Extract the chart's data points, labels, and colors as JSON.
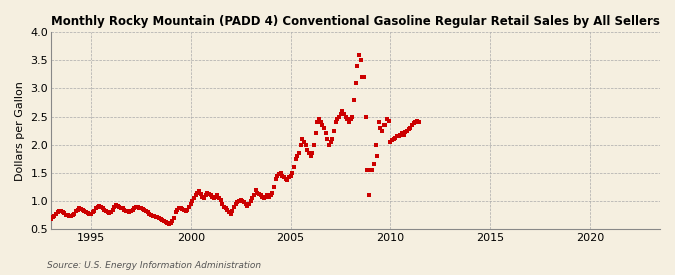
{
  "title": "Monthly Rocky Mountain (PADD 4) Conventional Gasoline Regular Retail Sales by All Sellers",
  "ylabel": "Dollars per Gallon",
  "source": "Source: U.S. Energy Information Administration",
  "background_color": "#f5efe0",
  "dot_color": "#cc0000",
  "xlim": [
    1993.0,
    2023.5
  ],
  "ylim": [
    0.5,
    4.0
  ],
  "yticks": [
    0.5,
    1.0,
    1.5,
    2.0,
    2.5,
    3.0,
    3.5,
    4.0
  ],
  "xticks": [
    1995,
    2000,
    2005,
    2010,
    2015,
    2020
  ],
  "data": [
    [
      1993.0,
      0.68
    ],
    [
      1993.08,
      0.72
    ],
    [
      1993.17,
      0.74
    ],
    [
      1993.25,
      0.78
    ],
    [
      1993.33,
      0.8
    ],
    [
      1993.42,
      0.83
    ],
    [
      1993.5,
      0.82
    ],
    [
      1993.58,
      0.81
    ],
    [
      1993.67,
      0.79
    ],
    [
      1993.75,
      0.76
    ],
    [
      1993.83,
      0.75
    ],
    [
      1993.92,
      0.74
    ],
    [
      1994.0,
      0.73
    ],
    [
      1994.08,
      0.75
    ],
    [
      1994.17,
      0.78
    ],
    [
      1994.25,
      0.82
    ],
    [
      1994.33,
      0.85
    ],
    [
      1994.42,
      0.87
    ],
    [
      1994.5,
      0.86
    ],
    [
      1994.58,
      0.84
    ],
    [
      1994.67,
      0.82
    ],
    [
      1994.75,
      0.8
    ],
    [
      1994.83,
      0.79
    ],
    [
      1994.92,
      0.78
    ],
    [
      1995.0,
      0.77
    ],
    [
      1995.08,
      0.8
    ],
    [
      1995.17,
      0.83
    ],
    [
      1995.25,
      0.88
    ],
    [
      1995.33,
      0.9
    ],
    [
      1995.42,
      0.91
    ],
    [
      1995.5,
      0.89
    ],
    [
      1995.58,
      0.87
    ],
    [
      1995.67,
      0.85
    ],
    [
      1995.75,
      0.83
    ],
    [
      1995.83,
      0.81
    ],
    [
      1995.92,
      0.79
    ],
    [
      1996.0,
      0.8
    ],
    [
      1996.08,
      0.84
    ],
    [
      1996.17,
      0.9
    ],
    [
      1996.25,
      0.93
    ],
    [
      1996.33,
      0.91
    ],
    [
      1996.42,
      0.9
    ],
    [
      1996.5,
      0.88
    ],
    [
      1996.58,
      0.87
    ],
    [
      1996.67,
      0.85
    ],
    [
      1996.75,
      0.83
    ],
    [
      1996.83,
      0.82
    ],
    [
      1996.92,
      0.81
    ],
    [
      1997.0,
      0.82
    ],
    [
      1997.08,
      0.85
    ],
    [
      1997.17,
      0.88
    ],
    [
      1997.25,
      0.9
    ],
    [
      1997.33,
      0.89
    ],
    [
      1997.42,
      0.88
    ],
    [
      1997.5,
      0.87
    ],
    [
      1997.58,
      0.86
    ],
    [
      1997.67,
      0.84
    ],
    [
      1997.75,
      0.82
    ],
    [
      1997.83,
      0.8
    ],
    [
      1997.92,
      0.78
    ],
    [
      1998.0,
      0.75
    ],
    [
      1998.08,
      0.74
    ],
    [
      1998.17,
      0.73
    ],
    [
      1998.25,
      0.72
    ],
    [
      1998.33,
      0.71
    ],
    [
      1998.42,
      0.7
    ],
    [
      1998.5,
      0.69
    ],
    [
      1998.58,
      0.67
    ],
    [
      1998.67,
      0.65
    ],
    [
      1998.75,
      0.63
    ],
    [
      1998.83,
      0.62
    ],
    [
      1998.92,
      0.6
    ],
    [
      1999.0,
      0.62
    ],
    [
      1999.08,
      0.65
    ],
    [
      1999.17,
      0.7
    ],
    [
      1999.25,
      0.8
    ],
    [
      1999.33,
      0.85
    ],
    [
      1999.42,
      0.88
    ],
    [
      1999.5,
      0.87
    ],
    [
      1999.58,
      0.86
    ],
    [
      1999.67,
      0.84
    ],
    [
      1999.75,
      0.82
    ],
    [
      1999.83,
      0.85
    ],
    [
      1999.92,
      0.9
    ],
    [
      2000.0,
      0.95
    ],
    [
      2000.08,
      1.0
    ],
    [
      2000.17,
      1.05
    ],
    [
      2000.25,
      1.1
    ],
    [
      2000.33,
      1.15
    ],
    [
      2000.42,
      1.18
    ],
    [
      2000.5,
      1.12
    ],
    [
      2000.58,
      1.08
    ],
    [
      2000.67,
      1.05
    ],
    [
      2000.75,
      1.1
    ],
    [
      2000.83,
      1.15
    ],
    [
      2000.92,
      1.12
    ],
    [
      2001.0,
      1.1
    ],
    [
      2001.08,
      1.08
    ],
    [
      2001.17,
      1.05
    ],
    [
      2001.25,
      1.08
    ],
    [
      2001.33,
      1.1
    ],
    [
      2001.42,
      1.05
    ],
    [
      2001.5,
      1.02
    ],
    [
      2001.58,
      0.95
    ],
    [
      2001.67,
      0.9
    ],
    [
      2001.75,
      0.88
    ],
    [
      2001.83,
      0.85
    ],
    [
      2001.92,
      0.8
    ],
    [
      2002.0,
      0.78
    ],
    [
      2002.08,
      0.82
    ],
    [
      2002.17,
      0.9
    ],
    [
      2002.25,
      0.95
    ],
    [
      2002.33,
      0.98
    ],
    [
      2002.42,
      1.0
    ],
    [
      2002.5,
      1.02
    ],
    [
      2002.58,
      1.0
    ],
    [
      2002.67,
      0.98
    ],
    [
      2002.75,
      0.95
    ],
    [
      2002.83,
      0.92
    ],
    [
      2002.92,
      0.95
    ],
    [
      2003.0,
      1.0
    ],
    [
      2003.08,
      1.05
    ],
    [
      2003.17,
      1.1
    ],
    [
      2003.25,
      1.2
    ],
    [
      2003.33,
      1.15
    ],
    [
      2003.42,
      1.12
    ],
    [
      2003.5,
      1.1
    ],
    [
      2003.58,
      1.08
    ],
    [
      2003.67,
      1.05
    ],
    [
      2003.75,
      1.08
    ],
    [
      2003.83,
      1.1
    ],
    [
      2003.92,
      1.08
    ],
    [
      2004.0,
      1.1
    ],
    [
      2004.08,
      1.15
    ],
    [
      2004.17,
      1.25
    ],
    [
      2004.25,
      1.4
    ],
    [
      2004.33,
      1.45
    ],
    [
      2004.42,
      1.48
    ],
    [
      2004.5,
      1.5
    ],
    [
      2004.58,
      1.45
    ],
    [
      2004.67,
      1.42
    ],
    [
      2004.75,
      1.4
    ],
    [
      2004.83,
      1.38
    ],
    [
      2004.92,
      1.42
    ],
    [
      2005.0,
      1.45
    ],
    [
      2005.08,
      1.5
    ],
    [
      2005.17,
      1.6
    ],
    [
      2005.25,
      1.75
    ],
    [
      2005.33,
      1.8
    ],
    [
      2005.42,
      1.85
    ],
    [
      2005.5,
      2.0
    ],
    [
      2005.58,
      2.1
    ],
    [
      2005.67,
      2.05
    ],
    [
      2005.75,
      2.0
    ],
    [
      2005.83,
      1.9
    ],
    [
      2005.92,
      1.85
    ],
    [
      2006.0,
      1.8
    ],
    [
      2006.08,
      1.85
    ],
    [
      2006.17,
      2.0
    ],
    [
      2006.25,
      2.2
    ],
    [
      2006.33,
      2.4
    ],
    [
      2006.42,
      2.45
    ],
    [
      2006.5,
      2.4
    ],
    [
      2006.58,
      2.35
    ],
    [
      2006.67,
      2.3
    ],
    [
      2006.75,
      2.2
    ],
    [
      2006.83,
      2.1
    ],
    [
      2006.92,
      2.0
    ],
    [
      2007.0,
      2.05
    ],
    [
      2007.08,
      2.1
    ],
    [
      2007.17,
      2.25
    ],
    [
      2007.25,
      2.4
    ],
    [
      2007.33,
      2.45
    ],
    [
      2007.42,
      2.5
    ],
    [
      2007.5,
      2.55
    ],
    [
      2007.58,
      2.6
    ],
    [
      2007.67,
      2.55
    ],
    [
      2007.75,
      2.5
    ],
    [
      2007.83,
      2.45
    ],
    [
      2007.92,
      2.4
    ],
    [
      2008.0,
      2.45
    ],
    [
      2008.08,
      2.5
    ],
    [
      2008.17,
      2.8
    ],
    [
      2008.25,
      3.1
    ],
    [
      2008.33,
      3.4
    ],
    [
      2008.42,
      3.6
    ],
    [
      2008.5,
      3.5
    ],
    [
      2008.58,
      3.2
    ],
    [
      2008.67,
      3.2
    ],
    [
      2008.75,
      2.5
    ],
    [
      2008.83,
      1.55
    ],
    [
      2008.92,
      1.1
    ],
    [
      2009.0,
      1.55
    ],
    [
      2009.08,
      1.55
    ],
    [
      2009.17,
      1.65
    ],
    [
      2009.25,
      2.0
    ],
    [
      2009.33,
      1.8
    ],
    [
      2009.42,
      2.4
    ],
    [
      2009.5,
      2.3
    ],
    [
      2009.58,
      2.25
    ],
    [
      2009.67,
      2.35
    ],
    [
      2009.75,
      2.35
    ],
    [
      2009.83,
      2.45
    ],
    [
      2009.92,
      2.42
    ],
    [
      2010.0,
      2.05
    ],
    [
      2010.08,
      2.08
    ],
    [
      2010.17,
      2.1
    ],
    [
      2010.25,
      2.12
    ],
    [
      2010.33,
      2.15
    ],
    [
      2010.42,
      2.15
    ],
    [
      2010.5,
      2.18
    ],
    [
      2010.58,
      2.2
    ],
    [
      2010.67,
      2.18
    ],
    [
      2010.75,
      2.22
    ],
    [
      2010.83,
      2.25
    ],
    [
      2010.92,
      2.28
    ],
    [
      2011.0,
      2.3
    ],
    [
      2011.08,
      2.35
    ],
    [
      2011.17,
      2.38
    ],
    [
      2011.25,
      2.4
    ],
    [
      2011.33,
      2.42
    ],
    [
      2011.42,
      2.4
    ]
  ]
}
